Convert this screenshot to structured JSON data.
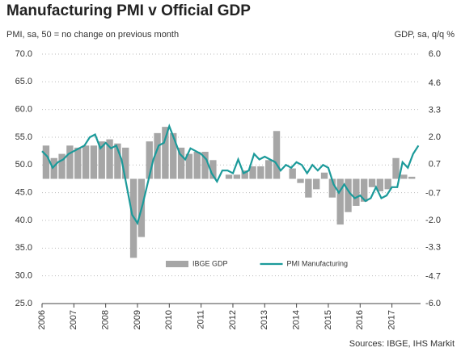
{
  "chart_data": {
    "type": "combo",
    "title": "Manufacturing PMI v Official GDP",
    "y_label": "PMI, sa, 50 = no change on previous month",
    "y2_label": "GDP, sa, q/q %",
    "source": "Sources: IBGE, IHS Markit",
    "legend": "lower center",
    "grid": true,
    "xlim": [
      2006,
      2017.9
    ],
    "xticks": [
      2006,
      2007,
      2008,
      2009,
      2010,
      2011,
      2012,
      2013,
      2014,
      2015,
      2016,
      2017
    ],
    "ylim": [
      25,
      70
    ],
    "yticks": [
      {
        "value": 70,
        "label": "70.0"
      },
      {
        "value": 65,
        "label": "65.0"
      },
      {
        "value": 60,
        "label": "60.0"
      },
      {
        "value": 55,
        "label": "55.0"
      },
      {
        "value": 50,
        "label": "50.0"
      },
      {
        "value": 45,
        "label": "45.0"
      },
      {
        "value": 40,
        "label": "40.0"
      },
      {
        "value": 35,
        "label": "35.0"
      },
      {
        "value": 30,
        "label": "30.0"
      },
      {
        "value": 25,
        "label": "25.0"
      }
    ],
    "y2lim": [
      -6,
      6
    ],
    "y2ticks": [
      {
        "value": 6,
        "label": "6.0"
      },
      4.6,
      3.3,
      {
        "value": 2,
        "label": "2.0"
      },
      0.7,
      -0.7,
      {
        "value": -2,
        "label": "-2.0"
      },
      -3.3,
      -4.7,
      {
        "value": -6,
        "label": "-6.0"
      }
    ],
    "series": [
      {
        "name": "IBGE GDP",
        "type": "bar",
        "axis": "y2",
        "color": "#a6a6a6",
        "x": [
          2006.125,
          2006.375,
          2006.625,
          2006.875,
          2007.125,
          2007.375,
          2007.625,
          2007.875,
          2008.125,
          2008.375,
          2008.625,
          2008.875,
          2009.125,
          2009.375,
          2009.625,
          2009.875,
          2010.125,
          2010.375,
          2010.625,
          2010.875,
          2011.125,
          2011.375,
          2011.625,
          2011.875,
          2012.125,
          2012.375,
          2012.625,
          2012.875,
          2013.125,
          2013.375,
          2013.625,
          2013.875,
          2014.125,
          2014.375,
          2014.625,
          2014.875,
          2015.125,
          2015.375,
          2015.625,
          2015.875,
          2016.125,
          2016.375,
          2016.625,
          2016.875,
          2017.125,
          2017.375,
          2017.625
        ],
        "values": [
          1.6,
          1.0,
          1.2,
          1.6,
          1.5,
          1.6,
          1.6,
          1.8,
          1.9,
          1.7,
          1.5,
          -3.8,
          -2.8,
          1.8,
          2.2,
          2.5,
          2.2,
          1.5,
          1.2,
          1.3,
          1.3,
          0.9,
          0.0,
          0.2,
          0.2,
          0.4,
          0.6,
          0.6,
          0.9,
          2.3,
          0.0,
          0.5,
          -0.2,
          -0.9,
          -0.5,
          0.3,
          -0.9,
          -2.2,
          -1.6,
          -1.3,
          -1.1,
          -0.4,
          -0.6,
          -0.5,
          1.0,
          0.2,
          0.1
        ]
      },
      {
        "name": "PMI Manufacturing",
        "type": "line",
        "axis": "y",
        "color": "#1b9a9a",
        "x": [
          2006.0,
          2006.167,
          2006.333,
          2006.5,
          2006.667,
          2006.833,
          2007.0,
          2007.167,
          2007.333,
          2007.5,
          2007.667,
          2007.833,
          2008.0,
          2008.167,
          2008.333,
          2008.5,
          2008.667,
          2008.833,
          2009.0,
          2009.167,
          2009.333,
          2009.5,
          2009.667,
          2009.833,
          2010.0,
          2010.167,
          2010.333,
          2010.5,
          2010.667,
          2010.833,
          2011.0,
          2011.167,
          2011.333,
          2011.5,
          2011.667,
          2011.833,
          2012.0,
          2012.167,
          2012.333,
          2012.5,
          2012.667,
          2012.833,
          2013.0,
          2013.167,
          2013.333,
          2013.5,
          2013.667,
          2013.833,
          2014.0,
          2014.167,
          2014.333,
          2014.5,
          2014.667,
          2014.833,
          2015.0,
          2015.167,
          2015.333,
          2015.5,
          2015.667,
          2015.833,
          2016.0,
          2016.167,
          2016.333,
          2016.5,
          2016.667,
          2016.833,
          2017.0,
          2017.167,
          2017.333,
          2017.5,
          2017.667,
          2017.833
        ],
        "values": [
          52.5,
          51.5,
          49.5,
          50.5,
          51,
          52,
          52.5,
          53,
          53.5,
          55,
          55.5,
          53,
          54,
          53,
          53.5,
          51,
          46,
          41,
          39.5,
          43,
          47,
          51,
          53.5,
          54,
          57,
          54.5,
          52,
          51,
          53,
          52.5,
          52,
          51,
          48.5,
          47,
          49,
          49,
          48.5,
          51,
          48.5,
          49,
          52,
          51,
          51.5,
          51,
          50.5,
          49,
          50,
          49.5,
          50.5,
          50,
          48.5,
          50,
          49,
          50,
          49.5,
          46.5,
          45,
          46.5,
          45,
          44,
          44.5,
          43.5,
          44,
          46,
          44,
          44.5,
          46,
          46,
          50.5,
          49.5,
          52,
          53.5
        ]
      }
    ]
  }
}
